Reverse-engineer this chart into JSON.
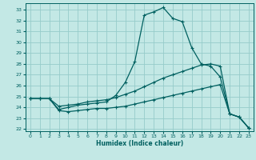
{
  "xlabel": "Humidex (Indice chaleur)",
  "bg_color": "#c3e8e5",
  "grid_color": "#96ccca",
  "line_color": "#006060",
  "xlim": [
    -0.5,
    23.5
  ],
  "ylim": [
    21.8,
    33.6
  ],
  "xticks": [
    0,
    1,
    2,
    3,
    4,
    5,
    6,
    7,
    8,
    9,
    10,
    11,
    12,
    13,
    14,
    15,
    16,
    17,
    18,
    19,
    20,
    21,
    22,
    23
  ],
  "yticks": [
    22,
    23,
    24,
    25,
    26,
    27,
    28,
    29,
    30,
    31,
    32,
    33
  ],
  "line1_x": [
    0,
    1,
    2,
    3,
    4,
    5,
    6,
    7,
    8,
    9,
    10,
    11,
    12,
    13,
    14,
    15,
    16,
    17,
    18,
    19,
    20,
    21,
    22,
    23
  ],
  "line1_y": [
    24.8,
    24.8,
    24.8,
    23.8,
    24.0,
    24.2,
    24.3,
    24.4,
    24.5,
    25.1,
    26.3,
    28.2,
    32.5,
    32.8,
    33.2,
    32.2,
    31.9,
    29.5,
    28.0,
    27.8,
    26.8,
    23.4,
    23.1,
    22.1
  ],
  "line2_x": [
    0,
    1,
    2,
    3,
    4,
    5,
    6,
    7,
    8,
    9,
    10,
    11,
    12,
    13,
    14,
    15,
    16,
    17,
    18,
    19,
    20,
    21,
    22,
    23
  ],
  "line2_y": [
    24.8,
    24.8,
    24.8,
    24.1,
    24.2,
    24.3,
    24.5,
    24.6,
    24.7,
    24.9,
    25.2,
    25.5,
    25.9,
    26.3,
    26.7,
    27.0,
    27.3,
    27.6,
    27.9,
    28.0,
    27.8,
    23.4,
    23.1,
    22.1
  ],
  "line3_x": [
    0,
    1,
    2,
    3,
    4,
    5,
    6,
    7,
    8,
    9,
    10,
    11,
    12,
    13,
    14,
    15,
    16,
    17,
    18,
    19,
    20,
    21,
    22,
    23
  ],
  "line3_y": [
    24.8,
    24.8,
    24.8,
    23.7,
    23.6,
    23.7,
    23.8,
    23.9,
    23.9,
    24.0,
    24.1,
    24.3,
    24.5,
    24.7,
    24.9,
    25.1,
    25.3,
    25.5,
    25.7,
    25.9,
    26.1,
    23.4,
    23.1,
    22.1
  ]
}
